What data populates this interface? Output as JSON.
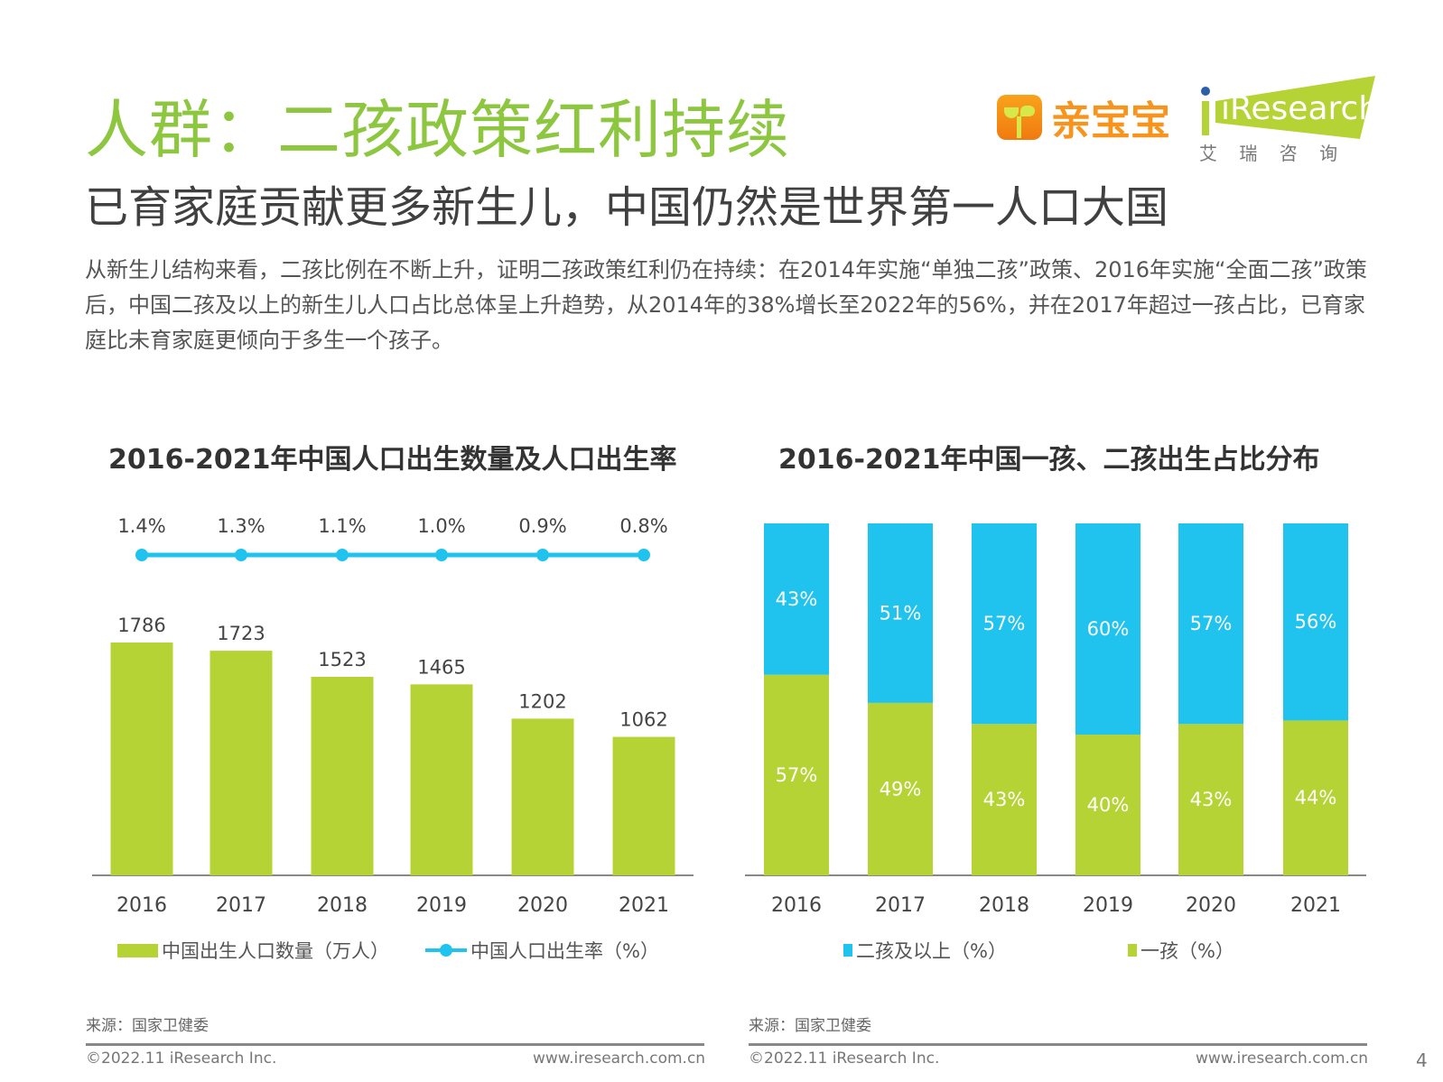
{
  "header": {
    "title": "人群：二孩政策红利持续",
    "subtitle": "已育家庭贡献更多新生儿，中国仍然是世界第一人口大国",
    "paragraph": "从新生儿结构来看，二孩比例在不断上升，证明二孩政策红利仍在持续：在2014年实施“单独二孩”政策、2016年实施“全面二孩”政策后，中国二孩及以上的新生儿人口占比总体呈上升趋势，从2014年的38%增长至2022年的56%，并在2017年超过一孩占比，已育家庭比未育家庭更倾向于多生一个孩子。"
  },
  "logos": {
    "qinbaobao": "亲宝宝",
    "iresearch": "iResearch",
    "iresearch_cn": "艾 瑞 咨 询"
  },
  "colors": {
    "title_green": "#8DC63F",
    "bar_green": "#B5D334",
    "line_blue": "#1FC3EE",
    "brand_orange": "#F7941D"
  },
  "chart_data": [
    {
      "type": "bar",
      "title": "2016-2021年中国人口出生数量及人口出生率",
      "categories": [
        "2016",
        "2017",
        "2018",
        "2019",
        "2020",
        "2021"
      ],
      "series": [
        {
          "name": "中国出生人口数量（万人）",
          "type": "bar",
          "values": [
            1786,
            1723,
            1523,
            1465,
            1202,
            1062
          ],
          "labels": [
            "1786",
            "1723",
            "1523",
            "1465",
            "1202",
            "1062"
          ]
        },
        {
          "name": "中国人口出生率（%）",
          "type": "line",
          "values": [
            1.4,
            1.3,
            1.1,
            1.0,
            0.9,
            0.8
          ],
          "labels": [
            "1.4%",
            "1.3%",
            "1.1%",
            "1.0%",
            "0.9%",
            "0.8%"
          ]
        }
      ],
      "legend": "bottom",
      "grid": false,
      "source": "来源：国家卫健委"
    },
    {
      "type": "bar",
      "stacked": true,
      "title": "2016-2021年中国一孩、二孩出生占比分布",
      "categories": [
        "2016",
        "2017",
        "2018",
        "2019",
        "2020",
        "2021"
      ],
      "series": [
        {
          "name": "二孩及以上（%）",
          "values": [
            43,
            51,
            57,
            60,
            57,
            56
          ],
          "labels": [
            "43%",
            "51%",
            "57%",
            "60%",
            "57%",
            "56%"
          ]
        },
        {
          "name": "一孩（%）",
          "values": [
            57,
            49,
            43,
            40,
            43,
            44
          ],
          "labels": [
            "57%",
            "49%",
            "43%",
            "40%",
            "43%",
            "44%"
          ]
        }
      ],
      "legend": "bottom",
      "grid": false,
      "ylim": [
        0,
        100
      ],
      "source": "来源：国家卫健委"
    }
  ],
  "footer": {
    "copyright": "©2022.11 iResearch Inc.",
    "url": "www.iresearch.com.cn",
    "page": "4"
  }
}
